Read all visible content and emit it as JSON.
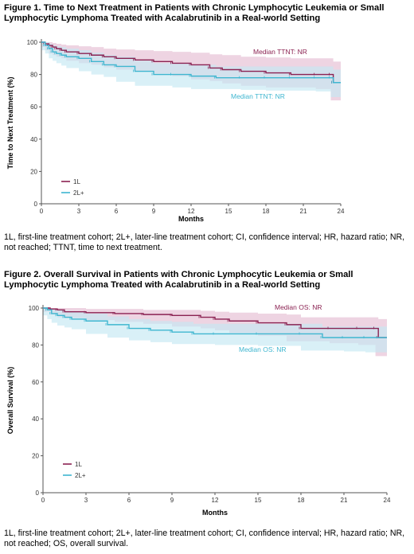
{
  "figure1": {
    "title": "Figure 1. Time to Next Treatment in Patients with Chronic Lymphocytic Leukemia or Small Lymphocytic Lymphoma Treated with Acalabrutinib in a Real-world Setting",
    "caption": "1L, first-line treatment cohort; 2L+, later-line treatment cohort; CI, confidence interval; HR, hazard ratio; NR, not reached; TTNT, time to next treatment."
  },
  "figure2": {
    "title": "Figure 2. Overall Survival in Patients with Chronic Lymphocytic Leukemia or Small Lymphocytic Lymphoma Treated with Acalabrutinib in a Real-world Setting",
    "caption": "1L, first-line treatment cohort; 2L+, later-line treatment cohort; CI, confidence interval; HR, hazard ratio; NR, not reached; OS, overall survival."
  },
  "colors": {
    "first_line": "#8B2252",
    "first_line_ci": "#E8C6D8",
    "later_line": "#3FB6D0",
    "later_line_ci": "#C5E8F2",
    "axis": "#555555"
  },
  "chart_data": [
    {
      "type": "line",
      "title": "Figure 1. Time to Next Treatment in Patients with Chronic Lymphocytic Leukemia or Small Lymphocytic Lymphoma Treated with Acalabrutinib in a Real-world Setting",
      "xlabel": "Months",
      "ylabel": "Time to Next Treatment (%)",
      "xlim": [
        0,
        24
      ],
      "ylim": [
        0,
        100
      ],
      "xticks": [
        0,
        3,
        6,
        9,
        12,
        15,
        18,
        21,
        24
      ],
      "yticks": [
        0,
        20,
        40,
        60,
        80,
        100
      ],
      "legend": [
        "1L",
        "2L+"
      ],
      "legend_position": "bottom-left",
      "annotations": [
        "Median TTNT: NR",
        "Median TTNT: NR"
      ],
      "series": [
        {
          "name": "1L",
          "x": [
            0,
            0.3,
            0.6,
            0.9,
            1.2,
            1.6,
            2.0,
            3.0,
            4.0,
            5.0,
            6.0,
            7.5,
            9.0,
            10.5,
            12.0,
            13.5,
            14.5,
            16.0,
            18.0,
            20.0,
            22.0,
            23.2,
            23.4,
            24.0
          ],
          "y": [
            100,
            99,
            98,
            97,
            96,
            95,
            94,
            93,
            92,
            91,
            90,
            89,
            88,
            87,
            86,
            84,
            83,
            82,
            81,
            80,
            80,
            80,
            75,
            75
          ],
          "ci_upper": [
            100,
            100,
            100,
            99.5,
            99,
            98.5,
            98,
            97.5,
            97,
            96,
            95.5,
            95,
            94.5,
            94,
            93.5,
            92.5,
            92,
            91,
            90.5,
            90,
            90,
            90,
            88,
            88
          ],
          "ci_lower": [
            100,
            97,
            95,
            93,
            92,
            91,
            90,
            88.5,
            87,
            86,
            84.5,
            83,
            82,
            80.5,
            79,
            77,
            76,
            74.5,
            73,
            72,
            72,
            71,
            64,
            64
          ]
        },
        {
          "name": "2L+",
          "x": [
            0,
            0.3,
            0.6,
            0.9,
            1.2,
            1.6,
            2.0,
            3.0,
            4.0,
            5.0,
            6.0,
            7.5,
            9.0,
            10.5,
            12.0,
            14.0,
            16.0,
            18.0,
            20.0,
            22.0,
            23.2,
            23.4,
            24.0
          ],
          "y": [
            100,
            98,
            96,
            94,
            93,
            92,
            91,
            90,
            88,
            86,
            85,
            82,
            80,
            80,
            79,
            78,
            78,
            78,
            78,
            78,
            78,
            75,
            75
          ],
          "ci_upper": [
            100,
            100,
            99,
            98,
            97.5,
            97,
            96,
            95,
            93.5,
            92,
            91,
            88.5,
            87,
            87,
            86,
            85,
            85,
            85,
            85,
            85,
            85,
            83,
            83
          ],
          "ci_lower": [
            100,
            95,
            93,
            90,
            88.5,
            87,
            85.5,
            84,
            82,
            80,
            78.5,
            75.5,
            73,
            73,
            72,
            71,
            71,
            70.5,
            70,
            70,
            69.5,
            66,
            66
          ]
        }
      ]
    },
    {
      "type": "line",
      "title": "Figure 2. Overall Survival in Patients with Chronic Lymphocytic Leukemia or Small Lymphocytic Lymphoma Treated with Acalabrutinib in a Real-world Setting",
      "xlabel": "Months",
      "ylabel": "Overall Survival (%)",
      "xlim": [
        0,
        24
      ],
      "ylim": [
        0,
        100
      ],
      "xticks": [
        0,
        3,
        6,
        9,
        12,
        15,
        18,
        21,
        24
      ],
      "yticks": [
        0,
        20,
        40,
        60,
        80,
        100
      ],
      "legend": [
        "1L",
        "2L+"
      ],
      "legend_position": "bottom-left",
      "annotations": [
        "Median OS: NR",
        "Median OS: NR"
      ],
      "series": [
        {
          "name": "1L",
          "x": [
            0,
            0.5,
            1.0,
            1.5,
            3.0,
            5.0,
            7.0,
            9.0,
            11.0,
            12.0,
            13.0,
            15.0,
            17.0,
            18.0,
            20.0,
            22.0,
            23.2,
            23.4,
            24.0
          ],
          "y": [
            100,
            99.5,
            99,
            98,
            97.5,
            97,
            96.5,
            96,
            95,
            94,
            93,
            92,
            91,
            89,
            89,
            89,
            89,
            84,
            84
          ],
          "ci_upper": [
            100,
            100,
            100,
            100,
            99.5,
            99.5,
            99,
            99,
            98.5,
            98,
            97.5,
            97,
            96.5,
            95,
            95,
            95,
            95,
            94,
            94
          ],
          "ci_lower": [
            100,
            98,
            96.5,
            95,
            94.5,
            93.5,
            92.5,
            91.5,
            90,
            89,
            88,
            86.5,
            85,
            82,
            82,
            81,
            80,
            74,
            74
          ]
        },
        {
          "name": "2L+",
          "x": [
            0,
            0.3,
            0.6,
            1.0,
            1.5,
            2.0,
            3.0,
            4.5,
            6.0,
            7.5,
            9.0,
            10.5,
            12.0,
            15.0,
            18.0,
            19.5,
            21.0,
            22.5,
            24.0
          ],
          "y": [
            100,
            99,
            97,
            96,
            95,
            94,
            93,
            91,
            89,
            88,
            87,
            86,
            86,
            86,
            86,
            84,
            84,
            84,
            84
          ],
          "ci_upper": [
            100,
            100,
            99.5,
            99,
            98.5,
            98,
            97,
            95.5,
            94,
            93,
            92.5,
            91.5,
            91.5,
            91.5,
            91.5,
            90,
            90,
            90,
            90
          ],
          "ci_lower": [
            100,
            96,
            94,
            92,
            90.5,
            89.5,
            88.5,
            86,
            84,
            82.5,
            81.5,
            80.5,
            80.5,
            80,
            79.5,
            77,
            77,
            76.5,
            76
          ]
        }
      ]
    }
  ]
}
